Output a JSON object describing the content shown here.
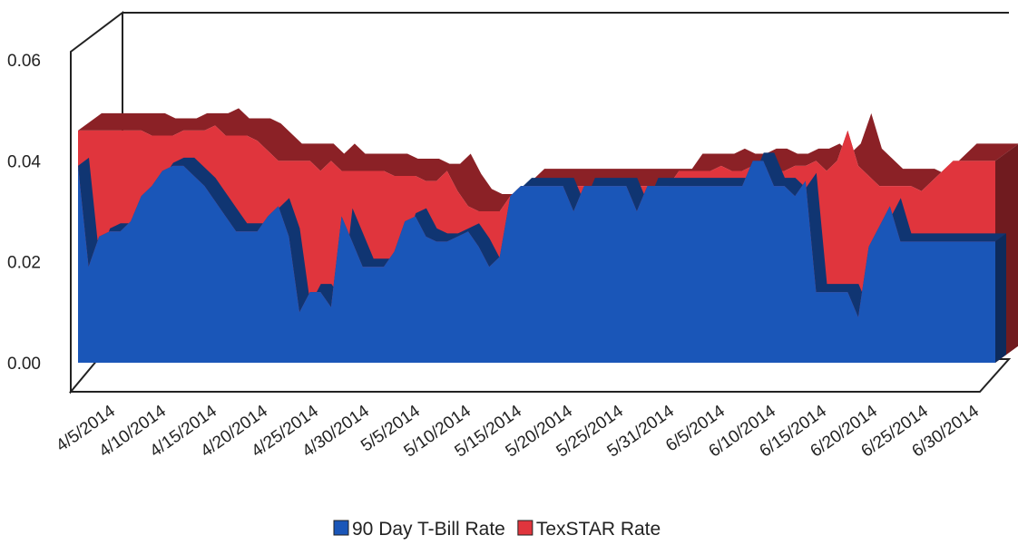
{
  "chart_data": {
    "type": "area",
    "title": "",
    "xlabel": "",
    "ylabel": "",
    "ylim": [
      0,
      0.06
    ],
    "y_ticks": [
      "0.00",
      "0.02",
      "0.04",
      "0.06"
    ],
    "x_ticks": [
      "4/5/2014",
      "4/10/2014",
      "4/15/2014",
      "4/20/2014",
      "4/25/2014",
      "4/30/2014",
      "5/5/2014",
      "5/10/2014",
      "5/15/2014",
      "5/20/2014",
      "5/25/2014",
      "5/31/2014",
      "6/5/2014",
      "6/10/2014",
      "6/15/2014",
      "6/20/2014",
      "6/25/2014",
      "6/30/2014"
    ],
    "legend_position": "bottom",
    "series": [
      {
        "name": "TexSTAR Rate",
        "color": "#e0353d",
        "values": [
          0.046,
          0.046,
          0.046,
          0.046,
          0.046,
          0.046,
          0.046,
          0.045,
          0.045,
          0.045,
          0.046,
          0.046,
          0.046,
          0.047,
          0.045,
          0.045,
          0.045,
          0.044,
          0.042,
          0.04,
          0.04,
          0.04,
          0.04,
          0.038,
          0.04,
          0.038,
          0.038,
          0.038,
          0.038,
          0.038,
          0.037,
          0.037,
          0.037,
          0.036,
          0.036,
          0.038,
          0.034,
          0.031,
          0.03,
          0.03,
          0.03,
          0.033,
          0.035,
          0.035,
          0.035,
          0.035,
          0.035,
          0.035,
          0.035,
          0.035,
          0.035,
          0.035,
          0.035,
          0.035,
          0.035,
          0.035,
          0.035,
          0.038,
          0.038,
          0.038,
          0.038,
          0.039,
          0.038,
          0.038,
          0.039,
          0.039,
          0.038,
          0.038,
          0.039,
          0.039,
          0.04,
          0.038,
          0.04,
          0.046,
          0.039,
          0.037,
          0.035,
          0.035,
          0.035,
          0.035,
          0.034,
          0.036,
          0.038,
          0.04,
          0.04,
          0.04,
          0.04,
          0.04
        ]
      },
      {
        "name": "90 Day T-Bill Rate",
        "color": "#1a56b8",
        "values": [
          0.039,
          0.019,
          0.025,
          0.026,
          0.026,
          0.028,
          0.033,
          0.035,
          0.038,
          0.039,
          0.039,
          0.037,
          0.035,
          0.032,
          0.029,
          0.026,
          0.026,
          0.026,
          0.029,
          0.031,
          0.025,
          0.01,
          0.014,
          0.014,
          0.011,
          0.029,
          0.024,
          0.019,
          0.019,
          0.019,
          0.022,
          0.028,
          0.029,
          0.025,
          0.024,
          0.024,
          0.025,
          0.026,
          0.023,
          0.019,
          0.021,
          0.033,
          0.035,
          0.035,
          0.035,
          0.035,
          0.035,
          0.03,
          0.035,
          0.035,
          0.035,
          0.035,
          0.035,
          0.03,
          0.035,
          0.035,
          0.035,
          0.035,
          0.035,
          0.035,
          0.035,
          0.035,
          0.035,
          0.035,
          0.04,
          0.04,
          0.035,
          0.035,
          0.033,
          0.036,
          0.014,
          0.014,
          0.014,
          0.014,
          0.009,
          0.023,
          0.027,
          0.031,
          0.024,
          0.024,
          0.024,
          0.024,
          0.024,
          0.024,
          0.024,
          0.024,
          0.024,
          0.024
        ]
      }
    ]
  }
}
